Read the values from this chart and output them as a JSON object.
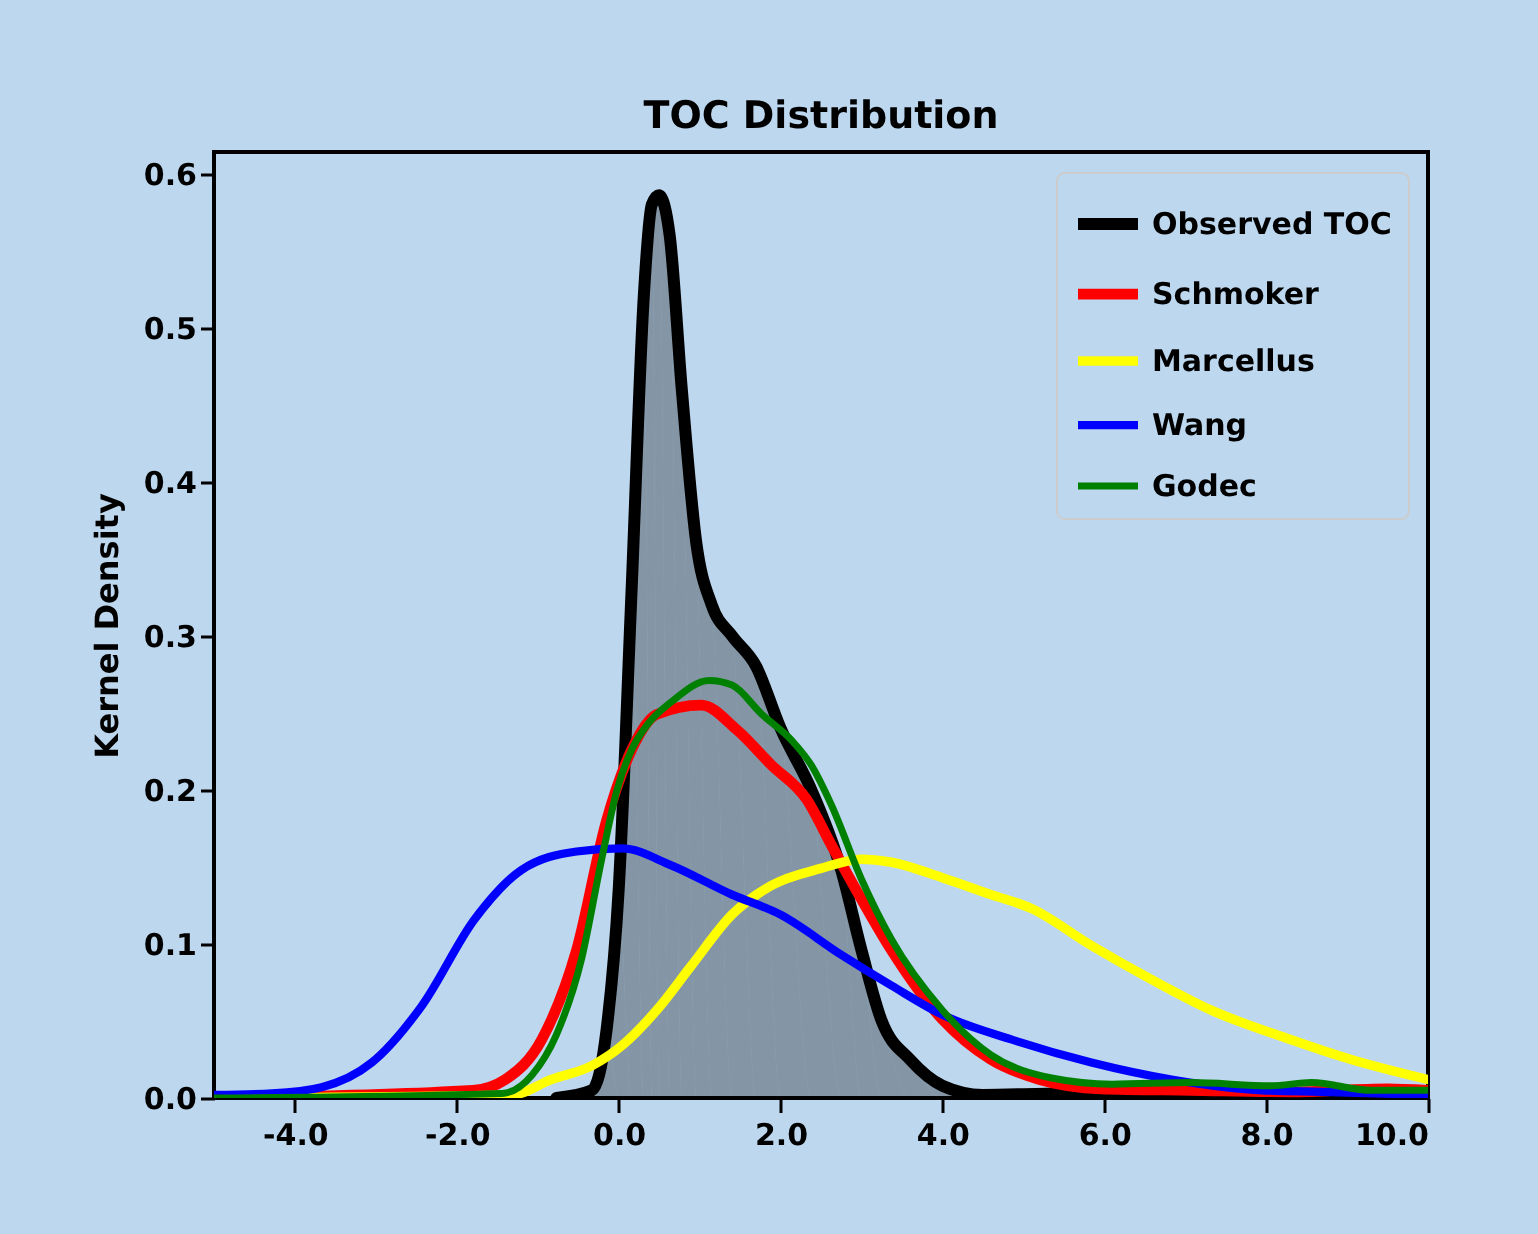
{
  "chart_data": {
    "type": "line",
    "title": "TOC Distribution",
    "ylabel": "Kernel Density",
    "xlim": [
      -5,
      10
    ],
    "ylim": [
      0,
      0.614
    ],
    "xticks": [
      {
        "value": -4,
        "label": "-4.0"
      },
      {
        "value": -2,
        "label": "-2.0"
      },
      {
        "value": 0,
        "label": "0.0"
      },
      {
        "value": 2,
        "label": "2.0"
      },
      {
        "value": 4,
        "label": "4.0"
      },
      {
        "value": 6,
        "label": "6.0"
      },
      {
        "value": 8,
        "label": "8.0"
      },
      {
        "value": 10,
        "label": "10.0"
      }
    ],
    "yticks": [
      {
        "value": 0,
        "label": "0.0"
      },
      {
        "value": 0.1,
        "label": "0.1"
      },
      {
        "value": 0.2,
        "label": "0.2"
      },
      {
        "value": 0.3,
        "label": "0.3"
      },
      {
        "value": 0.4,
        "label": "0.4"
      },
      {
        "value": 0.5,
        "label": "0.5"
      },
      {
        "value": 0.6,
        "label": "0.6"
      }
    ],
    "grid": false,
    "legend": "top right",
    "line_style": "solid",
    "marker": "none",
    "series": [
      {
        "name": "Observed TOC",
        "type": "area",
        "color": "#000000",
        "x": [
          -0.77,
          -0.33,
          -0.15,
          0,
          0.16,
          0.31,
          0.41,
          0.5,
          0.63,
          0.78,
          0.96,
          1.15,
          1.4,
          1.7,
          2.0,
          2.38,
          2.75,
          3.0,
          3.25,
          3.6,
          4.0,
          4.5,
          5.5,
          7,
          8.5,
          10
        ],
        "values": [
          0,
          0.005,
          0.044,
          0.135,
          0.33,
          0.52,
          0.58,
          0.586,
          0.56,
          0.46,
          0.36,
          0.32,
          0.3,
          0.28,
          0.24,
          0.2,
          0.148,
          0.096,
          0.05,
          0.025,
          0.008,
          0.002,
          0.003,
          0.002,
          0.002,
          0.002
        ]
      },
      {
        "name": "Schmoker",
        "color": "#ff0000",
        "x": [
          -5,
          -1.8,
          -1.4,
          -0.95,
          -0.52,
          -0.15,
          0.16,
          0.47,
          1.02,
          1.46,
          1.89,
          2.32,
          2.63,
          3.0,
          3.37,
          4.0,
          4.6,
          5.2,
          5.96,
          7.07,
          8.3,
          9.5,
          10
        ],
        "values": [
          0,
          0.005,
          0.012,
          0.038,
          0.096,
          0.18,
          0.226,
          0.249,
          0.255,
          0.239,
          0.216,
          0.194,
          0.164,
          0.129,
          0.096,
          0.051,
          0.025,
          0.012,
          0.006,
          0.005,
          0.004,
          0.006,
          0.005
        ]
      },
      {
        "name": "Marcellus",
        "color": "#ffff00",
        "x": [
          -5,
          -1.32,
          -0.83,
          -0.33,
          0.04,
          0.47,
          0.9,
          1.4,
          1.89,
          2.5,
          3.0,
          3.37,
          4.0,
          4.6,
          5.1,
          5.84,
          6.58,
          7.32,
          8.3,
          9.05,
          10
        ],
        "values": [
          0,
          0.002,
          0.012,
          0.021,
          0.034,
          0.057,
          0.086,
          0.119,
          0.138,
          0.149,
          0.155,
          0.153,
          0.143,
          0.132,
          0.123,
          0.099,
          0.077,
          0.057,
          0.038,
          0.025,
          0.012
        ]
      },
      {
        "name": "Wang",
        "color": "#0000ff",
        "x": [
          -5,
          -4.28,
          -3.67,
          -3.05,
          -2.43,
          -1.78,
          -1.2,
          -0.52,
          0.04,
          0.65,
          1.4,
          2.0,
          2.75,
          3.37,
          4.0,
          4.85,
          5.84,
          6.83,
          7.94,
          8.68,
          10
        ],
        "values": [
          0.002,
          0.003,
          0.007,
          0.023,
          0.06,
          0.116,
          0.148,
          0.16,
          0.162,
          0.151,
          0.132,
          0.119,
          0.093,
          0.073,
          0.054,
          0.038,
          0.023,
          0.012,
          0.005,
          0.004,
          0.002
        ]
      },
      {
        "name": "Godec",
        "color": "#008000",
        "x": [
          -5,
          -1.44,
          -1.07,
          -0.77,
          -0.46,
          -0.21,
          -0.02,
          0.16,
          0.35,
          0.65,
          1.12,
          1.4,
          1.77,
          2.14,
          2.38,
          2.63,
          3.0,
          3.37,
          4.0,
          4.6,
          5.35,
          6.1,
          7.07,
          8.06,
          8.56,
          9.3,
          10
        ],
        "values": [
          0,
          0.003,
          0.015,
          0.041,
          0.09,
          0.155,
          0.2,
          0.226,
          0.242,
          0.257,
          0.271,
          0.268,
          0.249,
          0.232,
          0.216,
          0.19,
          0.142,
          0.103,
          0.057,
          0.028,
          0.013,
          0.009,
          0.01,
          0.008,
          0.01,
          0.005,
          0.005
        ]
      }
    ]
  }
}
